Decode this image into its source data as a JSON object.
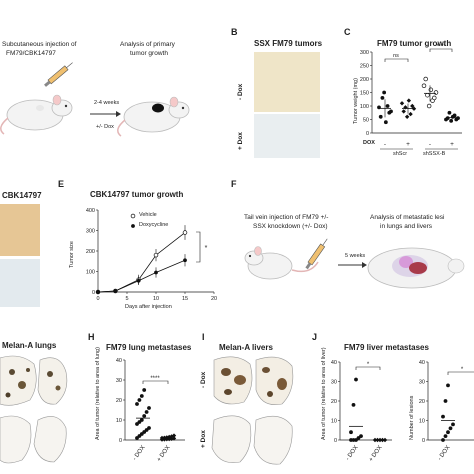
{
  "panels": {
    "A": {
      "step1": [
        "Subcutaneous injection of",
        "FM79/CBK14797"
      ],
      "step2": [
        "Analysis of primary",
        "tumor growth"
      ],
      "arrow_top": "2-4 weeks",
      "arrow_bottom": "+/- Dox"
    },
    "B": {
      "letter": "B",
      "title": "SSX FM79 tumors",
      "row_minus": "- Dox",
      "row_plus": "+ Dox"
    },
    "C": {
      "letter": "C"
    },
    "D": {
      "title": "CBK14797"
    },
    "E": {
      "letter": "E"
    },
    "F": {
      "letter": "F",
      "step1": [
        "Tail vein injection of FM79 +/-",
        "SSX knockdown (+/- Dox)"
      ],
      "arrow": "5 weeks",
      "step2": [
        "Analysis of metastatic lesi",
        "in lungs and livers"
      ]
    },
    "G": {
      "title": "Melan-A lungs"
    },
    "H": {
      "letter": "H"
    },
    "I": {
      "letter": "I",
      "title": "Melan-A livers",
      "row_minus": "- Dox",
      "row_plus": "+ Dox"
    },
    "J": {
      "letter": "J"
    }
  },
  "chart_data": [
    {
      "id": "C",
      "type": "scatter",
      "title": "FM79 tumor growth",
      "ylabel": "Tumor weight (mg)",
      "ylim": [
        0,
        300
      ],
      "yticks": [
        "0",
        "50",
        "100",
        "150",
        "200",
        "250",
        "300"
      ],
      "dox_row_label": "DOX",
      "dox_signs": [
        "-",
        "+",
        "-",
        "+"
      ],
      "groups": [
        "shScr",
        "shSSX-B"
      ],
      "significance": [
        "ns",
        "****"
      ],
      "series": [
        {
          "marker": "filled-circle",
          "values": [
            95,
            60,
            130,
            150,
            40,
            100,
            75,
            80
          ]
        },
        {
          "marker": "filled-diamond",
          "values": [
            110,
            80,
            95,
            60,
            120,
            70,
            100,
            90
          ]
        },
        {
          "marker": "open-circle",
          "values": [
            175,
            200,
            140,
            100,
            160,
            120,
            130,
            150
          ]
        },
        {
          "marker": "filled-circle",
          "values": [
            50,
            55,
            75,
            45,
            60,
            65,
            50,
            55
          ]
        }
      ]
    },
    {
      "id": "E",
      "type": "line",
      "title": "CBK14797 tumor growth",
      "xlabel": "Days after injection",
      "ylabel": "Tumor size",
      "xlim": [
        0,
        20
      ],
      "ylim": [
        0,
        400
      ],
      "xticks": [
        "0",
        "5",
        "10",
        "15",
        "20"
      ],
      "yticks": [
        "0",
        "100",
        "200",
        "300",
        "400"
      ],
      "significance": "*",
      "series": [
        {
          "name": "Vehicle",
          "marker": "open-circle",
          "x": [
            0,
            3,
            7,
            10,
            15
          ],
          "y": [
            0,
            5,
            60,
            180,
            290
          ]
        },
        {
          "name": "Doxycycline",
          "marker": "filled-circle",
          "x": [
            0,
            3,
            7,
            10,
            15
          ],
          "y": [
            0,
            5,
            55,
            95,
            155
          ]
        }
      ]
    },
    {
      "id": "H",
      "type": "scatter",
      "title": "FM79 lung metastases",
      "ylabel": "Area of tumor\n(relative to area of lung)",
      "ylim": [
        0,
        40
      ],
      "yticks": [
        "0",
        "10",
        "20",
        "30",
        "40"
      ],
      "categories": [
        "- DOX",
        "+ DOX"
      ],
      "significance": "****",
      "series": [
        {
          "marker": "filled-circle",
          "values": [
            1,
            2,
            3,
            4,
            5,
            6,
            8,
            9,
            10,
            12,
            14,
            16,
            18,
            20,
            22,
            25
          ]
        },
        {
          "marker": "filled-diamond",
          "values": [
            0.2,
            0.3,
            0.4,
            0.5,
            0.6,
            0.8,
            1,
            1.1,
            1.3,
            1.5,
            1.8,
            2.2
          ]
        }
      ]
    },
    {
      "id": "J1",
      "type": "scatter",
      "title": "FM79 liver metastases",
      "ylabel": "Area of tumor\n(relative to area of liver)",
      "ylim": [
        0,
        40
      ],
      "yticks": [
        "0",
        "10",
        "20",
        "30",
        "40"
      ],
      "categories": [
        "- DOX",
        "+ DOX"
      ],
      "significance": "*",
      "series": [
        {
          "marker": "filled-circle",
          "values": [
            0,
            0,
            0,
            1,
            2,
            4,
            18,
            31
          ]
        },
        {
          "marker": "filled-diamond",
          "values": [
            0,
            0,
            0,
            0,
            0
          ]
        }
      ]
    },
    {
      "id": "J2",
      "type": "scatter",
      "ylabel": "Number of lesions",
      "ylim": [
        0,
        40
      ],
      "yticks": [
        "0",
        "10",
        "20",
        "30",
        "40"
      ],
      "categories": [
        "- DOX"
      ],
      "significance": "*",
      "series": [
        {
          "marker": "filled-circle",
          "values": [
            0,
            2,
            4,
            6,
            8,
            12,
            20,
            28
          ]
        }
      ]
    }
  ]
}
